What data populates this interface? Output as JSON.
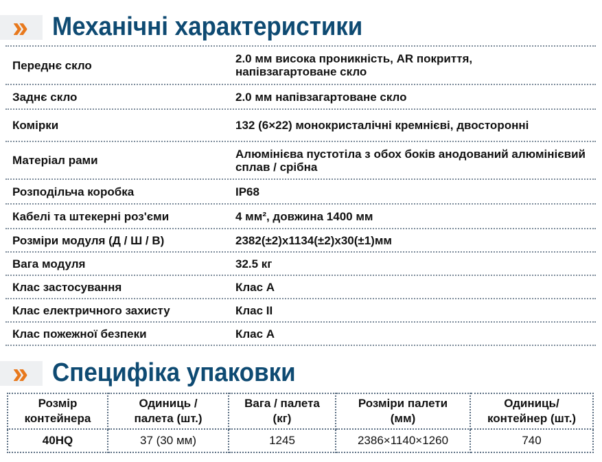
{
  "mechanical": {
    "title": "Механічні характеристики",
    "rows": [
      {
        "label": "Переднє скло",
        "value": "2.0 мм висока проникність, AR покриття, напівзагартоване скло"
      },
      {
        "label": "Заднє скло",
        "value": "2.0 мм напівзагартоване скло"
      },
      {
        "label": "Комірки",
        "value": "132 (6×22) монокристалічні кремнієві, двосторонні"
      },
      {
        "label": "Матеріал рами",
        "value": "Алюмінієва пустотіла з обох боків анодований алюмінієвий сплав / срібна"
      },
      {
        "label": "Розподільча коробка",
        "value": "IP68"
      },
      {
        "label": "Кабелі та штекерні роз'єми",
        "value": "4 мм², довжина 1400 мм"
      },
      {
        "label": "Розміри модуля (Д / Ш / В)",
        "value": "2382(±2)x1134(±2)x30(±1)мм"
      },
      {
        "label": "Вага модуля",
        "value": "32.5 кг"
      },
      {
        "label": "Клас застосування",
        "value": "Клас A"
      },
      {
        "label": "Клас електричного захисту",
        "value": "Клас II"
      },
      {
        "label": "Клас пожежної безпеки",
        "value": "Клас A"
      }
    ]
  },
  "packaging": {
    "title": "Специфіка упаковки",
    "headers": [
      [
        "Розмір",
        "контейнера"
      ],
      [
        "Одиниць /",
        "палета (шт.)"
      ],
      [
        "Вага / палета",
        "(кг)"
      ],
      [
        "Розміри палети",
        "(мм)"
      ],
      [
        "Одиниць/",
        "контейнер (шт.)"
      ]
    ],
    "row": [
      "40HQ",
      "37 (30 мм)",
      "1245",
      "2386×1140×1260",
      "740"
    ]
  },
  "colors": {
    "title": "#0e4a72",
    "chevron": "#e8791d"
  }
}
